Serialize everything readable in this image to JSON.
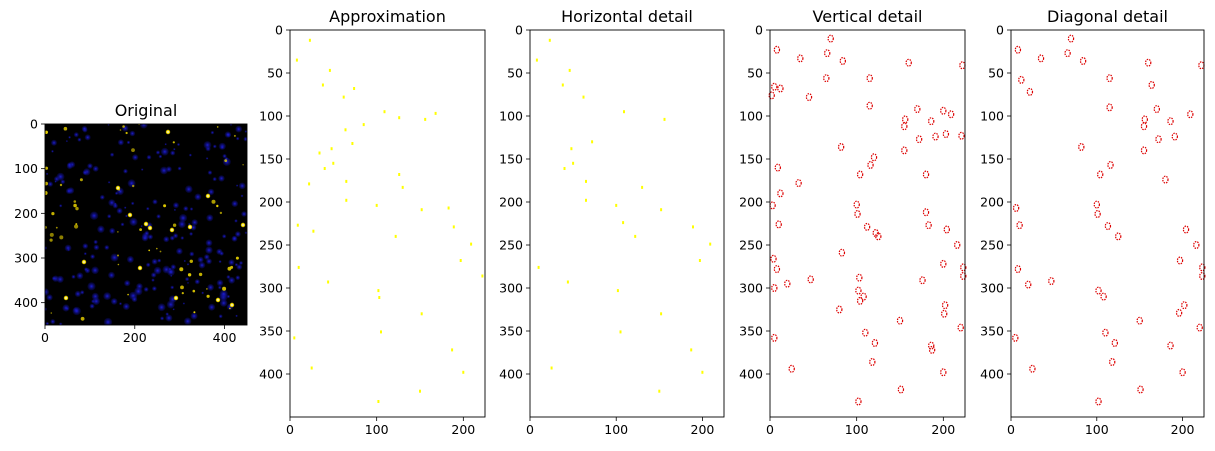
{
  "figure": {
    "background": "#ffffff",
    "text_color": "#000000"
  },
  "chart_data": [
    {
      "type": "heatmap",
      "title": "Original",
      "xticks": [
        0,
        200,
        400
      ],
      "yticks": [
        0,
        100,
        200,
        300,
        400
      ],
      "xlim": [
        0,
        450
      ],
      "ylim": [
        450,
        0
      ],
      "yaxis_inverted": true,
      "image": "dark microscopy-style image: black background with many blue blobs and scattered yellow/white bright spots",
      "colors": {
        "background": "#000000",
        "blob": "#1a1ad8",
        "spot": "#e6d000",
        "highlight": "#ffffff"
      }
    },
    {
      "type": "heatmap",
      "title": "Approximation",
      "xticks": [
        0,
        100,
        200
      ],
      "yticks": [
        0,
        50,
        100,
        150,
        200,
        250,
        300,
        350,
        400
      ],
      "xlim": [
        0,
        225
      ],
      "ylim": [
        450,
        0
      ],
      "yaxis_inverted": true,
      "colors": {
        "background": "#ffffff",
        "feature": "#ffff00"
      },
      "features": [
        [
          12,
          23
        ],
        [
          35,
          8
        ],
        [
          47,
          46
        ],
        [
          64,
          38
        ],
        [
          68,
          74
        ],
        [
          78,
          62
        ],
        [
          95,
          109
        ],
        [
          97,
          168
        ],
        [
          102,
          126
        ],
        [
          104,
          156
        ],
        [
          110,
          85
        ],
        [
          116,
          64
        ],
        [
          132,
          72
        ],
        [
          138,
          48
        ],
        [
          143,
          34
        ],
        [
          155,
          50
        ],
        [
          161,
          40
        ],
        [
          168,
          126
        ],
        [
          176,
          65
        ],
        [
          179,
          22
        ],
        [
          183,
          130
        ],
        [
          198,
          65
        ],
        [
          204,
          100
        ],
        [
          207,
          183
        ],
        [
          209,
          152
        ],
        [
          227,
          9
        ],
        [
          229,
          189
        ],
        [
          234,
          27
        ],
        [
          240,
          122
        ],
        [
          249,
          209
        ],
        [
          268,
          197
        ],
        [
          276,
          10
        ],
        [
          286,
          222
        ],
        [
          293,
          44
        ],
        [
          303,
          102
        ],
        [
          311,
          103
        ],
        [
          330,
          152
        ],
        [
          351,
          105
        ],
        [
          358,
          5
        ],
        [
          372,
          187
        ],
        [
          393,
          25
        ],
        [
          398,
          200
        ],
        [
          420,
          150
        ],
        [
          432,
          102
        ]
      ]
    },
    {
      "type": "heatmap",
      "title": "Horizontal detail",
      "xticks": [
        0,
        100,
        200
      ],
      "yticks": [
        0,
        50,
        100,
        150,
        200,
        250,
        300,
        350,
        400
      ],
      "xlim": [
        0,
        225
      ],
      "ylim": [
        450,
        0
      ],
      "yaxis_inverted": true,
      "colors": {
        "background": "#ffffff",
        "feature": "#ffff00"
      },
      "features": [
        [
          12,
          23
        ],
        [
          35,
          8
        ],
        [
          47,
          46
        ],
        [
          64,
          38
        ],
        [
          78,
          62
        ],
        [
          95,
          109
        ],
        [
          104,
          156
        ],
        [
          130,
          72
        ],
        [
          138,
          48
        ],
        [
          155,
          50
        ],
        [
          161,
          40
        ],
        [
          176,
          65
        ],
        [
          183,
          130
        ],
        [
          198,
          65
        ],
        [
          204,
          100
        ],
        [
          209,
          152
        ],
        [
          224,
          108
        ],
        [
          229,
          189
        ],
        [
          240,
          122
        ],
        [
          249,
          209
        ],
        [
          268,
          197
        ],
        [
          276,
          10
        ],
        [
          293,
          44
        ],
        [
          303,
          102
        ],
        [
          330,
          152
        ],
        [
          351,
          105
        ],
        [
          372,
          187
        ],
        [
          393,
          25
        ],
        [
          398,
          200
        ],
        [
          420,
          150
        ]
      ]
    },
    {
      "type": "heatmap",
      "title": "Vertical detail",
      "xticks": [
        0,
        100,
        200
      ],
      "yticks": [
        0,
        50,
        100,
        150,
        200,
        250,
        300,
        350,
        400
      ],
      "xlim": [
        0,
        225
      ],
      "ylim": [
        450,
        0
      ],
      "yaxis_inverted": true,
      "colors": {
        "background": "#ffffff",
        "feature": "#dd0000"
      },
      "features": [
        [
          10,
          70
        ],
        [
          23,
          8
        ],
        [
          27,
          66
        ],
        [
          33,
          35
        ],
        [
          36,
          84
        ],
        [
          38,
          160
        ],
        [
          41,
          222
        ],
        [
          56,
          115
        ],
        [
          56,
          65
        ],
        [
          66,
          5
        ],
        [
          68,
          12
        ],
        [
          76,
          2
        ],
        [
          78,
          45
        ],
        [
          88,
          115
        ],
        [
          92,
          170
        ],
        [
          94,
          200
        ],
        [
          98,
          209
        ],
        [
          104,
          156
        ],
        [
          106,
          186
        ],
        [
          112,
          155
        ],
        [
          121,
          203
        ],
        [
          123,
          221
        ],
        [
          124,
          191
        ],
        [
          127,
          172
        ],
        [
          136,
          82
        ],
        [
          140,
          155
        ],
        [
          148,
          120
        ],
        [
          157,
          116
        ],
        [
          160,
          9
        ],
        [
          168,
          104
        ],
        [
          168,
          180
        ],
        [
          178,
          33
        ],
        [
          190,
          12
        ],
        [
          203,
          100
        ],
        [
          204,
          3
        ],
        [
          212,
          180
        ],
        [
          214,
          101
        ],
        [
          226,
          10
        ],
        [
          227,
          183
        ],
        [
          229,
          112
        ],
        [
          232,
          204
        ],
        [
          236,
          122
        ],
        [
          240,
          125
        ],
        [
          250,
          216
        ],
        [
          259,
          83
        ],
        [
          266,
          4
        ],
        [
          272,
          200
        ],
        [
          276,
          223
        ],
        [
          278,
          8
        ],
        [
          286,
          223
        ],
        [
          288,
          103
        ],
        [
          290,
          47
        ],
        [
          291,
          176
        ],
        [
          295,
          20
        ],
        [
          300,
          5
        ],
        [
          303,
          102
        ],
        [
          310,
          108
        ],
        [
          315,
          104
        ],
        [
          320,
          202
        ],
        [
          325,
          80
        ],
        [
          330,
          201
        ],
        [
          338,
          150
        ],
        [
          346,
          220
        ],
        [
          352,
          110
        ],
        [
          358,
          5
        ],
        [
          364,
          121
        ],
        [
          367,
          186
        ],
        [
          372,
          187
        ],
        [
          386,
          118
        ],
        [
          394,
          25
        ],
        [
          398,
          200
        ],
        [
          418,
          151
        ],
        [
          432,
          102
        ]
      ]
    },
    {
      "type": "heatmap",
      "title": "Diagonal detail",
      "xticks": [
        0,
        100,
        200
      ],
      "yticks": [
        0,
        50,
        100,
        150,
        200,
        250,
        300,
        350,
        400
      ],
      "xlim": [
        0,
        225
      ],
      "ylim": [
        450,
        0
      ],
      "yaxis_inverted": true,
      "colors": {
        "background": "#ffffff",
        "feature": "#dd0000"
      },
      "features": [
        [
          10,
          70
        ],
        [
          23,
          8
        ],
        [
          27,
          66
        ],
        [
          33,
          35
        ],
        [
          36,
          84
        ],
        [
          38,
          160
        ],
        [
          41,
          222
        ],
        [
          56,
          115
        ],
        [
          58,
          12
        ],
        [
          64,
          164
        ],
        [
          72,
          22
        ],
        [
          90,
          115
        ],
        [
          92,
          170
        ],
        [
          98,
          209
        ],
        [
          104,
          156
        ],
        [
          106,
          186
        ],
        [
          112,
          155
        ],
        [
          124,
          191
        ],
        [
          127,
          172
        ],
        [
          136,
          82
        ],
        [
          140,
          155
        ],
        [
          157,
          116
        ],
        [
          168,
          104
        ],
        [
          174,
          180
        ],
        [
          203,
          100
        ],
        [
          207,
          6
        ],
        [
          214,
          101
        ],
        [
          227,
          10
        ],
        [
          228,
          113
        ],
        [
          232,
          204
        ],
        [
          240,
          125
        ],
        [
          250,
          216
        ],
        [
          268,
          197
        ],
        [
          276,
          223
        ],
        [
          278,
          8
        ],
        [
          286,
          223
        ],
        [
          292,
          47
        ],
        [
          296,
          20
        ],
        [
          303,
          102
        ],
        [
          310,
          108
        ],
        [
          320,
          202
        ],
        [
          329,
          196
        ],
        [
          338,
          150
        ],
        [
          346,
          220
        ],
        [
          352,
          110
        ],
        [
          358,
          5
        ],
        [
          364,
          121
        ],
        [
          367,
          186
        ],
        [
          386,
          118
        ],
        [
          394,
          25
        ],
        [
          398,
          200
        ],
        [
          418,
          151
        ],
        [
          432,
          102
        ]
      ]
    }
  ]
}
